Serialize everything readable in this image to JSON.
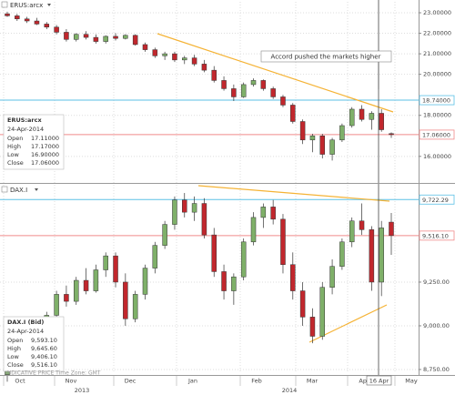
{
  "chart_data": [
    {
      "type": "candlestick",
      "title": "ERUS:arcx",
      "open": [
        22.95,
        22.85,
        22.7,
        22.6,
        22.45,
        22.3,
        22.05,
        21.7,
        21.95,
        21.8,
        21.6,
        21.85,
        21.75,
        21.9,
        21.45,
        21.2,
        20.9,
        21.0,
        20.7,
        20.8,
        20.5,
        20.2,
        19.7,
        19.3,
        18.9,
        19.5,
        19.7,
        19.3,
        18.9,
        18.5,
        17.7,
        16.8,
        17.0,
        16.1,
        16.8,
        17.5,
        18.3,
        17.8,
        18.1,
        17.11
      ],
      "high": [
        23.05,
        22.95,
        22.8,
        22.75,
        22.55,
        22.4,
        22.2,
        22.0,
        22.1,
        21.95,
        21.9,
        22.0,
        21.95,
        21.95,
        21.55,
        21.3,
        21.1,
        21.1,
        20.9,
        20.95,
        20.7,
        20.4,
        19.9,
        19.5,
        19.6,
        19.8,
        19.75,
        19.4,
        19.0,
        18.6,
        17.8,
        17.1,
        17.1,
        16.9,
        17.6,
        18.4,
        18.5,
        18.2,
        18.3,
        17.17
      ],
      "low": [
        22.8,
        22.6,
        22.5,
        22.4,
        22.2,
        21.95,
        21.6,
        21.6,
        21.7,
        21.5,
        21.5,
        21.65,
        21.7,
        21.4,
        21.1,
        20.8,
        20.7,
        20.6,
        20.5,
        20.4,
        20.1,
        19.6,
        19.2,
        18.7,
        18.85,
        19.4,
        19.2,
        18.8,
        18.4,
        17.6,
        16.6,
        16.2,
        15.9,
        15.8,
        16.7,
        17.4,
        17.7,
        17.3,
        17.2,
        16.9
      ],
      "close": [
        22.85,
        22.7,
        22.6,
        22.45,
        22.3,
        22.05,
        21.7,
        21.95,
        21.8,
        21.6,
        21.85,
        21.75,
        21.9,
        21.45,
        21.2,
        20.9,
        21.0,
        20.7,
        20.8,
        20.5,
        20.2,
        19.7,
        19.3,
        18.9,
        19.5,
        19.7,
        19.3,
        18.9,
        18.5,
        17.7,
        16.8,
        17.0,
        16.1,
        16.8,
        17.5,
        18.3,
        17.8,
        18.1,
        17.3,
        17.06
      ],
      "up_color": "#7fb069",
      "down_color": "#c1272d",
      "ylim": [
        14.75,
        23.4
      ],
      "yticks": [
        {
          "value": 23,
          "label": "23.00000"
        },
        {
          "value": 22,
          "label": "22.00000"
        },
        {
          "value": 21,
          "label": "21.00000"
        },
        {
          "value": 20,
          "label": "20.00000"
        },
        {
          "value": 18,
          "label": "18.00000"
        },
        {
          "value": 16,
          "label": "16.00000"
        }
      ],
      "grid": true,
      "levels": [
        {
          "value": 18.74,
          "label": "18.74000",
          "color": "#5bc0e6"
        },
        {
          "value": 17.06,
          "label": "17.06000",
          "color": "#f08a8a"
        }
      ],
      "annotation": "Accord pushed the markets higher",
      "info": {
        "name": "ERUS:arcx",
        "date": "24-Apr-2014",
        "fields": [
          {
            "name": "Open",
            "value": 17.11,
            "label": "17.11000"
          },
          {
            "name": "High",
            "value": 17.17,
            "label": "17.17000"
          },
          {
            "name": "Low",
            "value": 16.9,
            "label": "16.90000"
          },
          {
            "name": "Close",
            "value": 17.06,
            "label": "17.06000"
          }
        ]
      }
    },
    {
      "type": "candlestick",
      "title": "DAX.I",
      "open": [
        8720,
        8760,
        8880,
        8940,
        9020,
        9060,
        9180,
        9140,
        9260,
        9200,
        9320,
        9400,
        9250,
        9040,
        9180,
        9330,
        9460,
        9580,
        9720,
        9650,
        9700,
        9520,
        9310,
        9200,
        9280,
        9480,
        9620,
        9680,
        9610,
        9350,
        9200,
        9050,
        8940,
        9220,
        9340,
        9480,
        9600,
        9550,
        9250,
        9593.1
      ],
      "high": [
        8780,
        8900,
        8960,
        9050,
        9080,
        9200,
        9230,
        9280,
        9330,
        9350,
        9420,
        9420,
        9300,
        9200,
        9350,
        9480,
        9600,
        9740,
        9760,
        9740,
        9730,
        9560,
        9350,
        9300,
        9500,
        9650,
        9700,
        9720,
        9640,
        9420,
        9250,
        9100,
        9250,
        9380,
        9500,
        9620,
        9700,
        9570,
        9600,
        9645.6
      ],
      "low": [
        8680,
        8740,
        8850,
        8900,
        8990,
        9040,
        9110,
        9120,
        9180,
        9190,
        9280,
        9220,
        9000,
        9020,
        9150,
        9300,
        9440,
        9550,
        9620,
        9600,
        9500,
        9280,
        9150,
        9120,
        9260,
        9460,
        9560,
        9580,
        9300,
        9150,
        9000,
        8900,
        8920,
        9180,
        9320,
        9450,
        9520,
        9200,
        9170,
        9406.1
      ],
      "close": [
        8760,
        8880,
        8940,
        9020,
        9060,
        9180,
        9140,
        9260,
        9200,
        9320,
        9400,
        9250,
        9040,
        9180,
        9330,
        9460,
        9580,
        9720,
        9650,
        9700,
        9520,
        9310,
        9200,
        9280,
        9480,
        9620,
        9680,
        9610,
        9350,
        9200,
        9050,
        8940,
        9220,
        9340,
        9480,
        9600,
        9550,
        9250,
        9560,
        9516.1
      ],
      "up_color": "#7fb069",
      "down_color": "#c1272d",
      "ylim": [
        8729,
        9807
      ],
      "yticks": [
        {
          "value": 9250,
          "label": "9,250.00"
        },
        {
          "value": 9000,
          "label": "9,000.00"
        },
        {
          "value": 8750,
          "label": "8,750.00"
        }
      ],
      "grid": true,
      "levels": [
        {
          "value": 9722.29,
          "label": "9,722.29",
          "color": "#5bc0e6"
        },
        {
          "value": 9516.1,
          "label": "9,516.10",
          "color": "#f08a8a"
        }
      ],
      "info": {
        "name": "DAX.I (Bid)",
        "date": "24-Apr-2014",
        "fields": [
          {
            "name": "Open",
            "value": 9593.1,
            "label": "9,593.10"
          },
          {
            "name": "High",
            "value": 9645.6,
            "label": "9,645.60"
          },
          {
            "name": "Low",
            "value": 9406.1,
            "label": "9,406.10"
          },
          {
            "name": "Close",
            "value": 9516.1,
            "label": "9,516.10"
          }
        ]
      },
      "xtick_labels": [
        "Oct",
        "Nov",
        "Dec",
        "Jan",
        "Feb",
        "Mar",
        "Apr",
        "May"
      ],
      "xtick_years": [
        "2013",
        "2014"
      ],
      "cursor_label": "16 Apr",
      "footer": "INDICATIVE PRICE   Time Zone: GMT"
    }
  ]
}
